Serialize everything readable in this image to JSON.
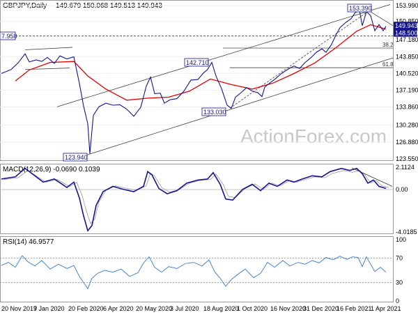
{
  "main": {
    "header_symbol": "GBPJPY,Daily",
    "header_ohlc": "149.679 150.068 149.513 149.943",
    "y_ticks": [
      "153.990",
      "150.850",
      "147.180",
      "143.850",
      "140.520",
      "137.190",
      "133.860",
      "130.280",
      "126.880",
      "123.550"
    ],
    "price_badges": {
      "current": "149.943",
      "support": "148.500"
    },
    "callouts": {
      "high1": "153.390",
      "high2": "142.710",
      "low1": "133.030",
      "low2": "123.940",
      "left": "7.950"
    },
    "fib_labels": {
      "fib382": "38.2",
      "fib618": "61.8"
    },
    "watermark": "ActionForex.com",
    "colors": {
      "price": "#14148c",
      "ma": "#e60000",
      "channel": "#404040",
      "badge_bg": "#14148c"
    }
  },
  "macd": {
    "header": "MACD(12,26,9) -0.0690 0.1039",
    "y_ticks": [
      "2.1124",
      "0.00",
      "-4.0185"
    ]
  },
  "rsi": {
    "header": "RSI(14) 46.9577",
    "y_ticks": [
      "100",
      "70",
      "30",
      "0"
    ]
  },
  "x_axis": {
    "labels": [
      "20 Nov 2019",
      "7 Jan 2020",
      "20 Feb 2020",
      "6 Apr 2020",
      "20 May 2020",
      "3 Jul 2020",
      "18 Aug 2020",
      "1 Oct 2020",
      "16 Nov 2020",
      "31 Dec 2020",
      "16 Feb 2021",
      "1 Apr 2021"
    ]
  },
  "chart_data": {
    "type": "line",
    "title": "GBPJPY,Daily",
    "x": [
      "20 Nov 2019",
      "7 Jan 2020",
      "20 Feb 2020",
      "6 Apr 2020",
      "20 May 2020",
      "3 Jul 2020",
      "18 Aug 2020",
      "1 Oct 2020",
      "16 Nov 2020",
      "31 Dec 2020",
      "16 Feb 2021",
      "1 Apr 2021"
    ],
    "series": [
      {
        "values": [
          140.5,
          143.9,
          141.5,
          133.8,
          133.5,
          133.6,
          140.2,
          135.2,
          137.8,
          141.5,
          149.6,
          152.8
        ]
      },
      {
        "values": [
          2.0,
          0.5,
          -0.8,
          -3.8,
          1.0,
          0.2,
          1.3,
          -0.8,
          0.6,
          0.8,
          1.8,
          0.3
        ]
      },
      {
        "values": [
          60,
          55,
          40,
          45,
          58,
          52,
          60,
          38,
          62,
          58,
          68,
          50
        ]
      }
    ],
    "ylim": [
      123.55,
      153.99
    ],
    "grid": true,
    "legend": "none"
  }
}
